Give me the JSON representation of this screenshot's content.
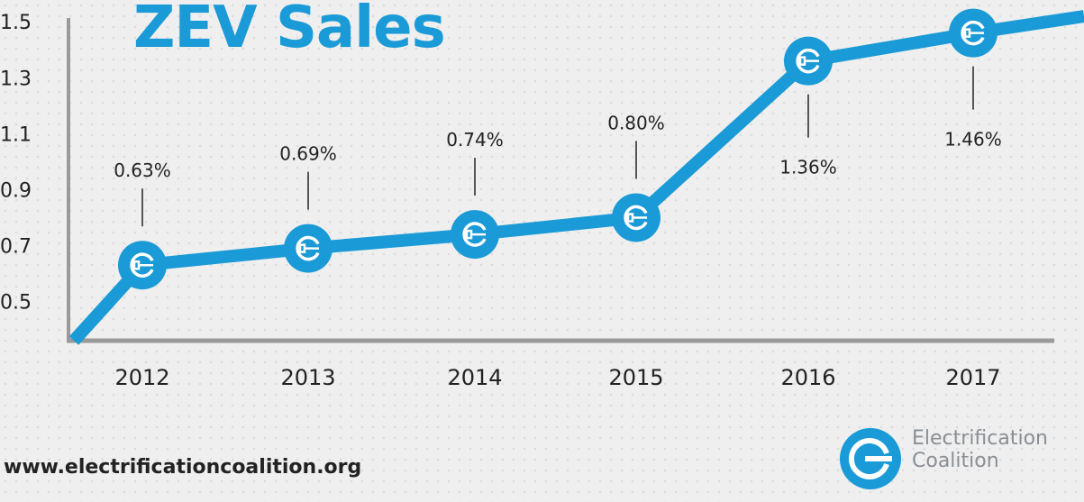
{
  "chart_data": {
    "type": "line",
    "title": "ZEV Sales",
    "categories": [
      "2012",
      "2013",
      "2014",
      "2015",
      "2016",
      "2017"
    ],
    "values": [
      0.63,
      0.69,
      0.74,
      0.8,
      1.36,
      1.46
    ],
    "data_labels": [
      "0.63%",
      "0.69%",
      "0.74%",
      "0.80%",
      "1.36%",
      "1.46%"
    ],
    "yticks": [
      "0.5",
      "0.7",
      "0.9",
      "1.1",
      "1.3",
      "1.5"
    ],
    "ylim": [
      0.36,
      1.52
    ],
    "grid": false,
    "marker": "electric-plug-e-icon"
  },
  "colors": {
    "accent": "#1a9ad6",
    "axis": "#9a9a9a",
    "background": "#efefef"
  },
  "footer": {
    "url": "www.electrificationcoalition.org",
    "logo_line1": "Electrification",
    "logo_line2": "Coalition"
  }
}
